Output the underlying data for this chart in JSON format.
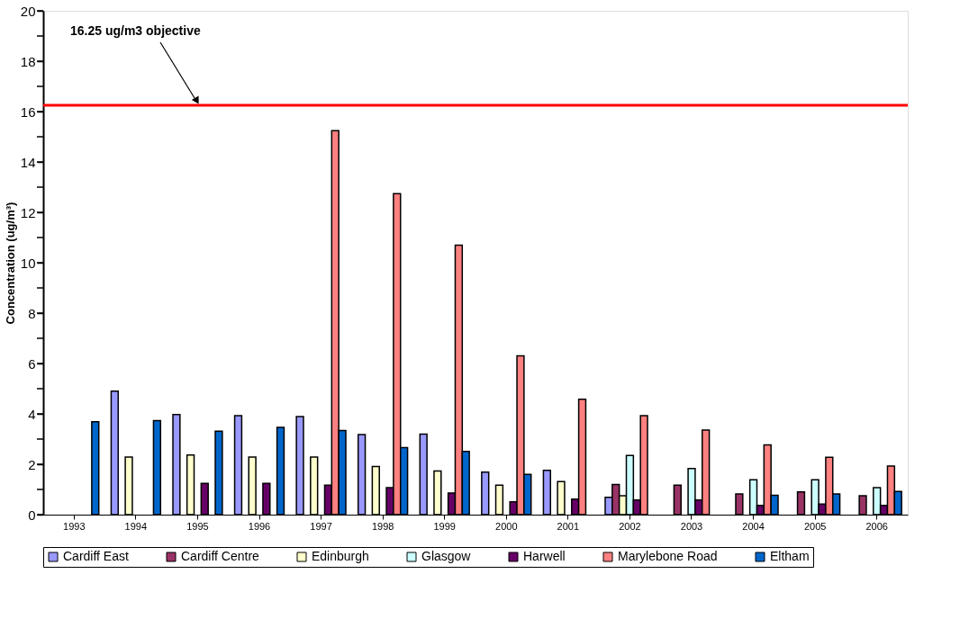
{
  "chart_data": {
    "type": "bar",
    "ylabel": "Concentration (ug/m³)",
    "categories": [
      "1993",
      "1994",
      "1995",
      "1996",
      "1997",
      "1998",
      "1999",
      "2000",
      "2001",
      "2002",
      "2003",
      "2004",
      "2005",
      "2006"
    ],
    "series": [
      {
        "name": "Cardiff East",
        "color": "#9999ff",
        "values": [
          null,
          4.9,
          3.97,
          3.93,
          3.89,
          3.18,
          3.2,
          1.69,
          1.76,
          0.69,
          null,
          null,
          null,
          null
        ]
      },
      {
        "name": "Cardiff Centre",
        "color": "#993366",
        "values": [
          null,
          null,
          null,
          null,
          null,
          null,
          null,
          null,
          null,
          1.2,
          1.17,
          0.82,
          0.9,
          0.75
        ]
      },
      {
        "name": "Edinburgh",
        "color": "#ffffcc",
        "values": [
          null,
          2.29,
          2.37,
          2.29,
          2.29,
          1.91,
          1.73,
          1.17,
          1.31,
          0.75,
          null,
          null,
          null,
          null
        ]
      },
      {
        "name": "Glasgow",
        "color": "#ccffff",
        "values": [
          null,
          null,
          null,
          null,
          null,
          null,
          null,
          null,
          null,
          2.35,
          1.83,
          1.38,
          1.38,
          1.07
        ]
      },
      {
        "name": "Harwell",
        "color": "#660066",
        "values": [
          null,
          null,
          1.24,
          1.24,
          1.17,
          1.07,
          0.86,
          0.51,
          0.62,
          0.58,
          0.58,
          0.37,
          0.42,
          0.37
        ]
      },
      {
        "name": "Marylebone Road",
        "color": "#ff8080",
        "values": [
          null,
          null,
          null,
          null,
          15.24,
          12.74,
          10.7,
          6.3,
          4.58,
          3.93,
          3.36,
          2.77,
          2.28,
          1.93
        ]
      },
      {
        "name": "Eltham",
        "color": "#0066cc",
        "values": [
          3.69,
          3.73,
          3.31,
          3.46,
          3.34,
          2.66,
          2.51,
          1.6,
          null,
          null,
          null,
          0.77,
          0.82,
          0.92
        ]
      }
    ],
    "ylim": [
      0,
      20
    ],
    "yticks": [
      0,
      {
        "value": 1,
        "label": null
      },
      2,
      {
        "value": 3,
        "label": null
      },
      4,
      {
        "value": 5,
        "label": null
      },
      6,
      {
        "value": 7,
        "label": null
      },
      8,
      {
        "value": 9,
        "label": null
      },
      10,
      {
        "value": 11,
        "label": null
      },
      12,
      {
        "value": 13,
        "label": null
      },
      14,
      {
        "value": 15,
        "label": null
      },
      16,
      {
        "value": 17,
        "label": null
      },
      18,
      {
        "value": 19,
        "label": null
      },
      20
    ],
    "ref_lines": [
      {
        "axis": "y",
        "value": 16.25,
        "label": "16.25 ug/m3 objective",
        "color": "#ff0000"
      }
    ],
    "grid": false,
    "legend": "bottom"
  }
}
